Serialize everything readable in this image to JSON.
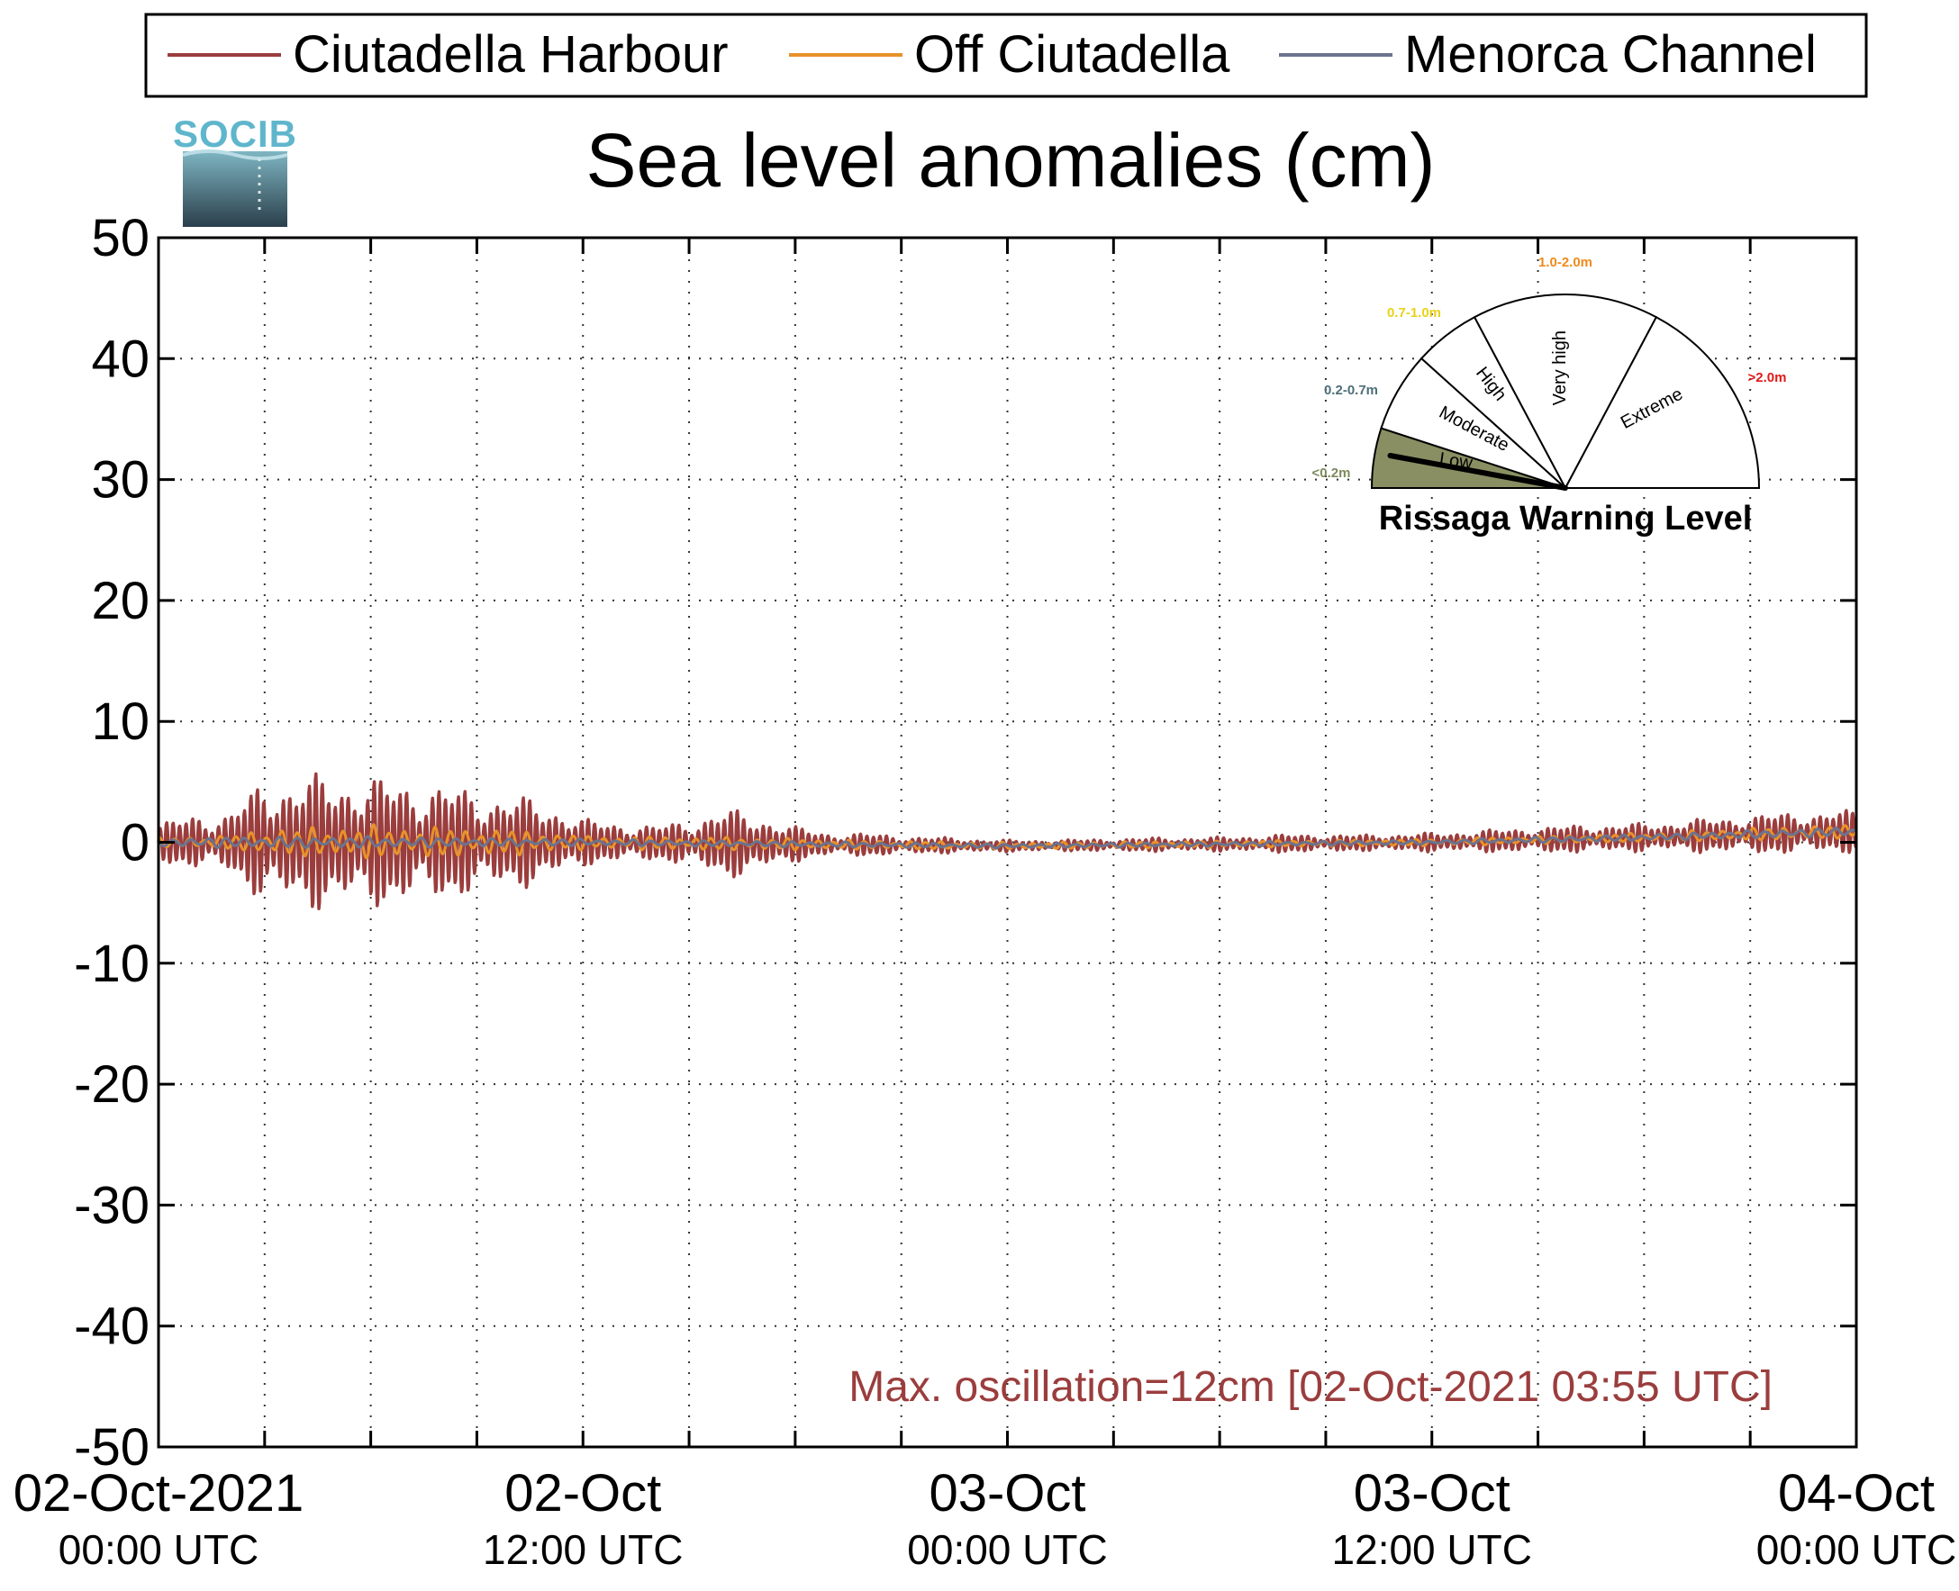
{
  "chart_data": {
    "type": "line",
    "title": "Sea level anomalies (cm)",
    "logo_text": "SOCIB",
    "ylabel": "",
    "xlabel": "",
    "ylim": [
      -50,
      50
    ],
    "yticks": [
      50,
      40,
      30,
      20,
      10,
      0,
      -10,
      -20,
      -30,
      -40,
      -50
    ],
    "yticks_labels": [
      "50",
      "40",
      "30",
      "20",
      "10",
      "0",
      "-10",
      "-20",
      "-30",
      "-40",
      "-50"
    ],
    "x_range_hours": [
      0,
      48
    ],
    "x_tick_hours": [
      0,
      12,
      24,
      36,
      48
    ],
    "x_minor_hours": [
      3,
      6,
      9,
      15,
      18,
      21,
      27,
      30,
      33,
      39,
      42,
      45
    ],
    "xticks": [
      {
        "line1": "02-Oct-2021",
        "line2": "00:00 UTC"
      },
      {
        "line1": "02-Oct",
        "line2": "12:00 UTC"
      },
      {
        "line1": "03-Oct",
        "line2": "00:00 UTC"
      },
      {
        "line1": "03-Oct",
        "line2": "12:00 UTC"
      },
      {
        "line1": "04-Oct",
        "line2": "00:00 UTC"
      }
    ],
    "grid": true,
    "legend_position": "top",
    "series": [
      {
        "name": "Ciutadella Harbour",
        "color": "#9b3d3d",
        "envelope_hours": [
          0,
          1,
          2,
          3,
          4,
          5,
          6,
          7,
          8,
          9,
          10,
          11,
          12,
          14,
          15,
          16,
          17,
          18,
          19,
          20,
          21,
          22,
          24,
          26,
          28,
          30,
          32,
          34,
          36,
          38,
          40,
          42,
          44,
          46,
          48
        ],
        "envelope_cm": [
          1.5,
          2.5,
          2.5,
          5.5,
          5.5,
          6.0,
          5.5,
          5.5,
          5.0,
          4.5,
          4.0,
          3.5,
          2.0,
          1.5,
          2.0,
          3.0,
          2.5,
          1.5,
          1.0,
          1.0,
          0.8,
          0.7,
          0.5,
          0.5,
          0.6,
          0.6,
          0.8,
          0.7,
          0.8,
          1.0,
          1.2,
          1.2,
          1.5,
          1.8,
          1.8
        ],
        "period_minutes": 11
      },
      {
        "name": "Off Ciutadella",
        "color": "#e8922a",
        "envelope_hours": [
          0,
          2,
          3,
          6,
          9,
          11,
          12,
          16,
          20,
          24,
          30,
          36,
          42,
          46,
          48
        ],
        "envelope_cm": [
          0.4,
          0.6,
          1.2,
          1.5,
          1.3,
          1.0,
          0.6,
          0.6,
          0.4,
          0.3,
          0.3,
          0.3,
          0.4,
          0.6,
          0.6
        ],
        "period_minutes": 26
      },
      {
        "name": "Menorca Channel",
        "color": "#6b7390",
        "envelope_hours": [
          0,
          3,
          6,
          12,
          24,
          36,
          48
        ],
        "envelope_cm": [
          0.4,
          0.5,
          0.5,
          0.3,
          0.2,
          0.2,
          0.4
        ],
        "period_minutes": 30
      }
    ],
    "trend_cm": [
      {
        "h": 0,
        "v": 0.0
      },
      {
        "h": 12,
        "v": 0.0
      },
      {
        "h": 24,
        "v": -0.3
      },
      {
        "h": 36,
        "v": 0.0
      },
      {
        "h": 42,
        "v": 0.4
      },
      {
        "h": 48,
        "v": 0.9
      }
    ],
    "annotation": {
      "text": "Max. oscillation=12cm [02-Oct-2021 03:55 UTC]",
      "color": "#9b3d3d"
    },
    "warning_gauge": {
      "title": "Rissaga Warning Level",
      "current_level": "Low",
      "sectors": [
        {
          "label": "Low",
          "range": "<0.2m",
          "range_color": "#7d8a5c",
          "fill": "#8a8f63",
          "active": true
        },
        {
          "label": "Moderate",
          "range": "0.2-0.7m",
          "range_color": "#4e6f78",
          "fill": "#ffffff",
          "active": false
        },
        {
          "label": "High",
          "range": "0.7-1.0m",
          "range_color": "#e8d21a",
          "fill": "#ffffff",
          "active": false
        },
        {
          "label": "Very high",
          "range": "1.0-2.0m",
          "range_color": "#f08a1c",
          "fill": "#ffffff",
          "active": false
        },
        {
          "label": "Extreme",
          "range": ">2.0m",
          "range_color": "#e01a1a",
          "fill": "#ffffff",
          "active": false
        }
      ]
    }
  }
}
